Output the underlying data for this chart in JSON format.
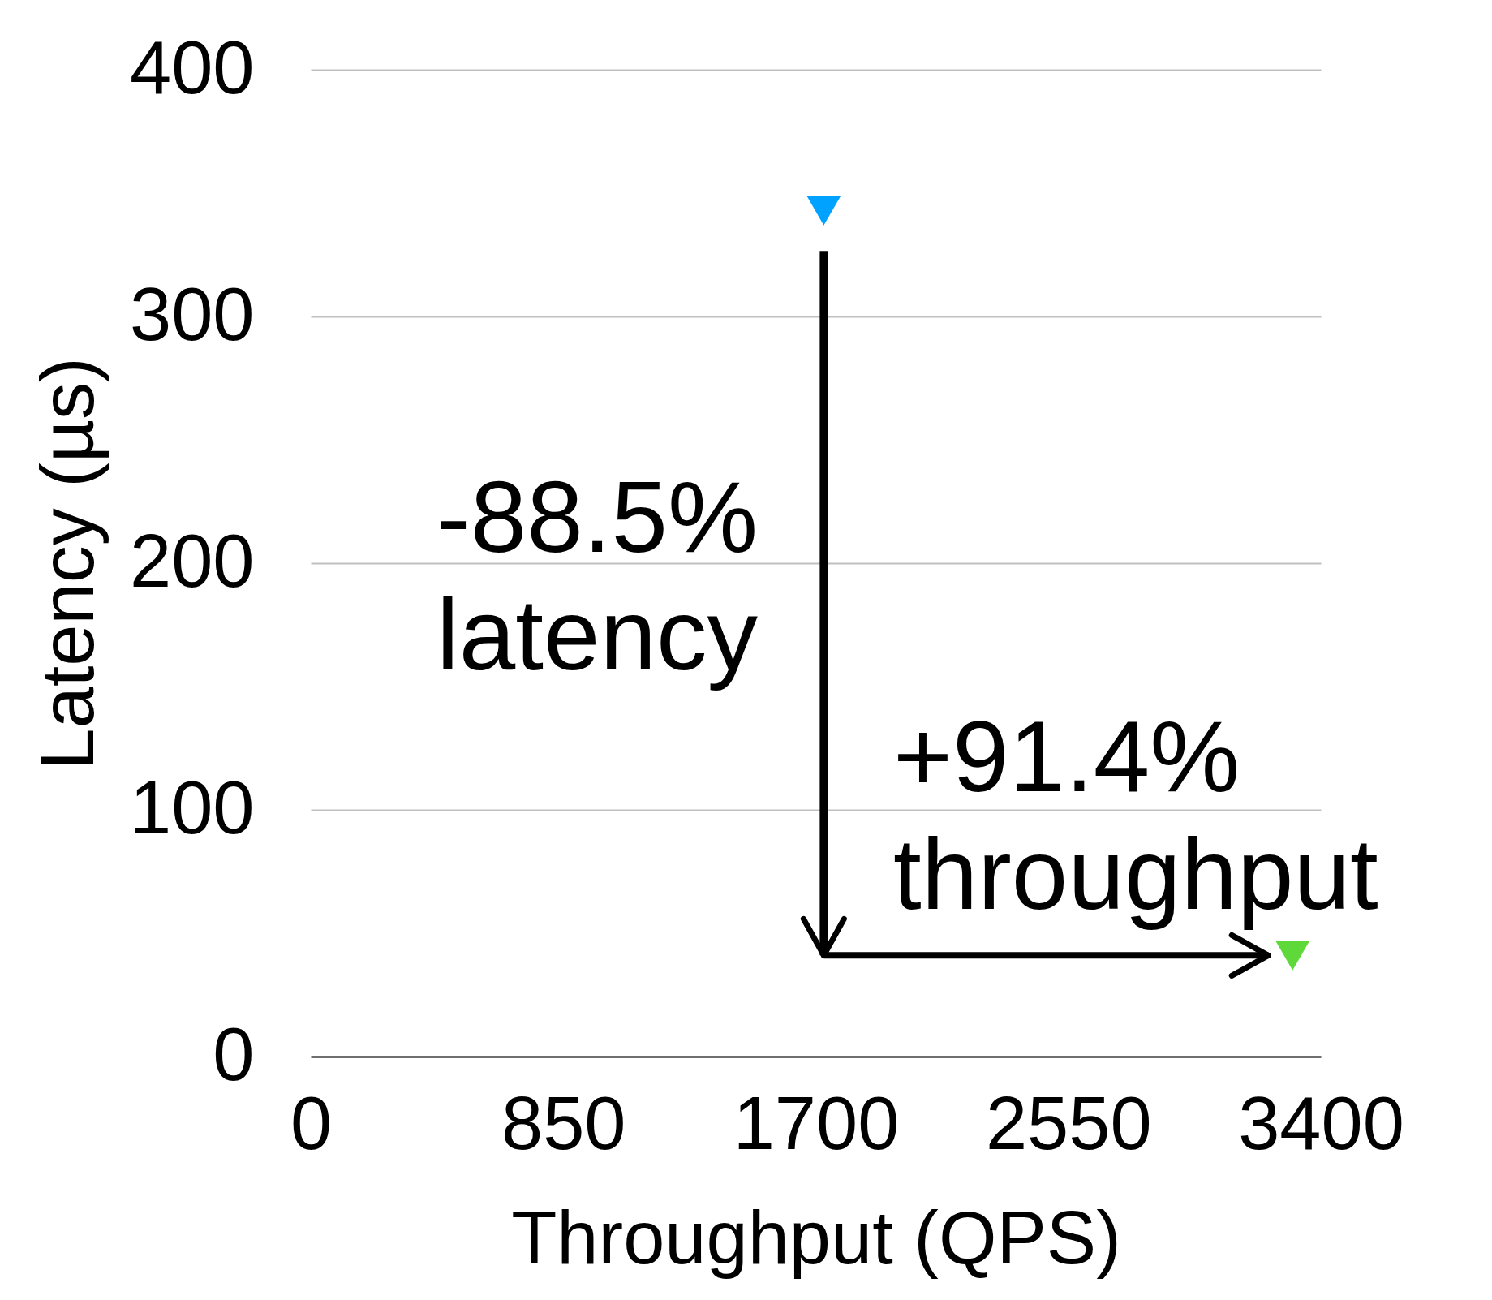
{
  "chart_data": {
    "type": "scatter",
    "xlabel": "Throughput (QPS)",
    "ylabel": "Latency (µs)",
    "series": [
      {
        "color": "#00a2ff",
        "x": [
          1727
        ],
        "values": [
          343
        ]
      },
      {
        "color": "#5fd93a",
        "x": [
          3305
        ],
        "values": [
          41
        ]
      }
    ],
    "xlim": [
      0,
      3400
    ],
    "xticks": [
      0,
      850,
      1700,
      2550,
      3400
    ],
    "ylim": [
      0,
      400
    ],
    "yticks": [
      0,
      100,
      200,
      300,
      400
    ],
    "grid": "y",
    "marker": "triangle",
    "annotations": [
      "-88.5%\nlatency",
      "+91.4%\nthroughput"
    ]
  }
}
